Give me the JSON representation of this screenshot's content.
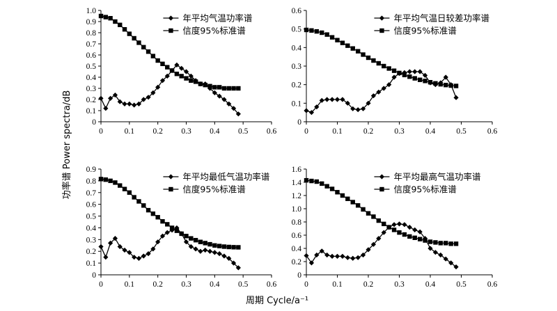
{
  "figure": {
    "ylabel": "功率谱 Power spectra/dB",
    "xlabel": "周期 Cycle/a⁻¹"
  },
  "chart_data": [
    {
      "type": "line",
      "xlim": [
        0,
        0.6
      ],
      "ylim": [
        0,
        1.0
      ],
      "xticks": [
        0,
        0.1,
        0.2,
        0.3,
        0.4,
        0.5,
        0.6
      ],
      "yticks": [
        0,
        0.1,
        0.2,
        0.3,
        0.4,
        0.5,
        0.6,
        0.7,
        0.8,
        0.9,
        1.0
      ],
      "xtick_labels": [
        "0",
        "0.1",
        "0.2",
        "0.3",
        "0.4",
        "0.5",
        "0.6"
      ],
      "ytick_labels": [
        "0",
        "0.1",
        "0.2",
        "0.3",
        "0.4",
        "0.5",
        "0.6",
        "0.7",
        "0.8",
        "0.9",
        "1.0"
      ],
      "legend_position": "top-right",
      "x": [
        0,
        0.0167,
        0.0333,
        0.05,
        0.0667,
        0.0833,
        0.1,
        0.1167,
        0.1333,
        0.15,
        0.1667,
        0.1833,
        0.2,
        0.2167,
        0.2333,
        0.25,
        0.2667,
        0.2833,
        0.3,
        0.3167,
        0.3333,
        0.35,
        0.3667,
        0.3833,
        0.4,
        0.4167,
        0.4333,
        0.45,
        0.4667,
        0.4833
      ],
      "series": [
        {
          "name": "年平均气温功率谱",
          "marker": "diamond",
          "values": [
            0.21,
            0.12,
            0.21,
            0.24,
            0.18,
            0.16,
            0.16,
            0.15,
            0.16,
            0.2,
            0.22,
            0.26,
            0.31,
            0.37,
            0.41,
            0.46,
            0.51,
            0.48,
            0.45,
            0.41,
            0.37,
            0.34,
            0.34,
            0.3,
            0.26,
            0.23,
            0.2,
            0.16,
            0.12,
            0.07
          ]
        },
        {
          "name": "信度95%标准谱",
          "marker": "square",
          "values": [
            0.95,
            0.94,
            0.93,
            0.9,
            0.87,
            0.83,
            0.79,
            0.75,
            0.71,
            0.67,
            0.63,
            0.59,
            0.55,
            0.52,
            0.49,
            0.46,
            0.43,
            0.41,
            0.39,
            0.37,
            0.36,
            0.34,
            0.33,
            0.32,
            0.31,
            0.31,
            0.3,
            0.3,
            0.3,
            0.3
          ]
        }
      ]
    },
    {
      "type": "line",
      "xlim": [
        0,
        0.6
      ],
      "ylim": [
        0,
        0.6
      ],
      "xticks": [
        0,
        0.1,
        0.2,
        0.3,
        0.4,
        0.5,
        0.6
      ],
      "yticks": [
        0,
        0.1,
        0.2,
        0.3,
        0.4,
        0.5,
        0.6
      ],
      "xtick_labels": [
        "0",
        "0.1",
        "0.2",
        "0.3",
        "0.4",
        "0.5",
        "0.6"
      ],
      "ytick_labels": [
        "0",
        "0.1",
        "0.2",
        "0.3",
        "0.4",
        "0.5",
        "0.6"
      ],
      "legend_position": "top-right",
      "x": [
        0,
        0.0167,
        0.0333,
        0.05,
        0.0667,
        0.0833,
        0.1,
        0.1167,
        0.1333,
        0.15,
        0.1667,
        0.1833,
        0.2,
        0.2167,
        0.2333,
        0.25,
        0.2667,
        0.2833,
        0.3,
        0.3167,
        0.3333,
        0.35,
        0.3667,
        0.3833,
        0.4,
        0.4167,
        0.4333,
        0.45,
        0.4667,
        0.4833
      ],
      "series": [
        {
          "name": "年平均气温日较差功率谱",
          "marker": "diamond",
          "values": [
            0.06,
            0.05,
            0.08,
            0.115,
            0.12,
            0.12,
            0.12,
            0.12,
            0.1,
            0.07,
            0.065,
            0.07,
            0.1,
            0.14,
            0.16,
            0.18,
            0.2,
            0.24,
            0.26,
            0.265,
            0.27,
            0.27,
            0.27,
            0.25,
            0.21,
            0.2,
            0.21,
            0.24,
            0.2,
            0.13
          ]
        },
        {
          "name": "信度95%标准谱",
          "marker": "square",
          "values": [
            0.495,
            0.492,
            0.487,
            0.48,
            0.47,
            0.455,
            0.44,
            0.425,
            0.41,
            0.395,
            0.38,
            0.362,
            0.345,
            0.33,
            0.315,
            0.3,
            0.287,
            0.275,
            0.263,
            0.252,
            0.243,
            0.234,
            0.226,
            0.22,
            0.213,
            0.207,
            0.202,
            0.198,
            0.195,
            0.193
          ]
        }
      ]
    },
    {
      "type": "line",
      "xlim": [
        0,
        0.6
      ],
      "ylim": [
        0,
        0.9
      ],
      "xticks": [
        0,
        0.1,
        0.2,
        0.3,
        0.4,
        0.5,
        0.6
      ],
      "yticks": [
        0,
        0.1,
        0.2,
        0.3,
        0.4,
        0.5,
        0.6,
        0.7,
        0.8,
        0.9
      ],
      "xtick_labels": [
        "0",
        "0.1",
        "0.2",
        "0.3",
        "0.4",
        "0.5",
        "0.6"
      ],
      "ytick_labels": [
        "0",
        "0.1",
        "0.2",
        "0.3",
        "0.4",
        "0.5",
        "0.6",
        "0.7",
        "0.8",
        "0.9"
      ],
      "legend_position": "top-right",
      "x": [
        0,
        0.0167,
        0.0333,
        0.05,
        0.0667,
        0.0833,
        0.1,
        0.1167,
        0.1333,
        0.15,
        0.1667,
        0.1833,
        0.2,
        0.2167,
        0.2333,
        0.25,
        0.2667,
        0.2833,
        0.3,
        0.3167,
        0.3333,
        0.35,
        0.3667,
        0.3833,
        0.4,
        0.4167,
        0.4333,
        0.45,
        0.4667,
        0.4833
      ],
      "series": [
        {
          "name": "年平均最低气温功率谱",
          "marker": "diamond",
          "values": [
            0.24,
            0.15,
            0.27,
            0.31,
            0.24,
            0.21,
            0.19,
            0.15,
            0.14,
            0.16,
            0.18,
            0.22,
            0.28,
            0.33,
            0.36,
            0.38,
            0.4,
            0.35,
            0.28,
            0.24,
            0.22,
            0.2,
            0.21,
            0.2,
            0.19,
            0.18,
            0.16,
            0.14,
            0.1,
            0.06
          ]
        },
        {
          "name": "信度95%标准谱",
          "marker": "square",
          "values": [
            0.815,
            0.81,
            0.8,
            0.785,
            0.76,
            0.73,
            0.7,
            0.66,
            0.625,
            0.59,
            0.55,
            0.52,
            0.49,
            0.455,
            0.43,
            0.4,
            0.375,
            0.35,
            0.33,
            0.31,
            0.295,
            0.28,
            0.27,
            0.26,
            0.25,
            0.245,
            0.24,
            0.237,
            0.235,
            0.234
          ]
        }
      ]
    },
    {
      "type": "line",
      "xlim": [
        0,
        0.6
      ],
      "ylim": [
        0,
        1.6
      ],
      "xticks": [
        0,
        0.1,
        0.2,
        0.3,
        0.4,
        0.5,
        0.6
      ],
      "yticks": [
        0,
        0.2,
        0.4,
        0.6,
        0.8,
        1.0,
        1.2,
        1.4,
        1.6
      ],
      "xtick_labels": [
        "0",
        "0.1",
        "0.2",
        "0.3",
        "0.4",
        "0.5",
        "0.6"
      ],
      "ytick_labels": [
        "0",
        "0.2",
        "0.4",
        "0.6",
        "0.8",
        "1.0",
        "1.2",
        "1.4",
        "1.6"
      ],
      "legend_position": "top-right",
      "x": [
        0,
        0.0167,
        0.0333,
        0.05,
        0.0667,
        0.0833,
        0.1,
        0.1167,
        0.1333,
        0.15,
        0.1667,
        0.1833,
        0.2,
        0.2167,
        0.2333,
        0.25,
        0.2667,
        0.2833,
        0.3,
        0.3167,
        0.3333,
        0.35,
        0.3667,
        0.3833,
        0.4,
        0.4167,
        0.4333,
        0.45,
        0.4667,
        0.4833
      ],
      "series": [
        {
          "name": "年平均最高气温功率谱",
          "marker": "diamond",
          "values": [
            0.29,
            0.18,
            0.3,
            0.36,
            0.3,
            0.28,
            0.28,
            0.28,
            0.26,
            0.25,
            0.26,
            0.3,
            0.38,
            0.46,
            0.55,
            0.64,
            0.72,
            0.76,
            0.77,
            0.76,
            0.72,
            0.68,
            0.65,
            0.55,
            0.4,
            0.34,
            0.3,
            0.24,
            0.18,
            0.12
          ]
        },
        {
          "name": "信度95%标准谱",
          "marker": "square",
          "values": [
            1.43,
            1.42,
            1.41,
            1.38,
            1.34,
            1.3,
            1.25,
            1.2,
            1.15,
            1.1,
            1.05,
            0.99,
            0.93,
            0.88,
            0.82,
            0.77,
            0.72,
            0.68,
            0.64,
            0.61,
            0.58,
            0.56,
            0.54,
            0.52,
            0.5,
            0.49,
            0.48,
            0.48,
            0.47,
            0.47
          ]
        }
      ]
    }
  ]
}
